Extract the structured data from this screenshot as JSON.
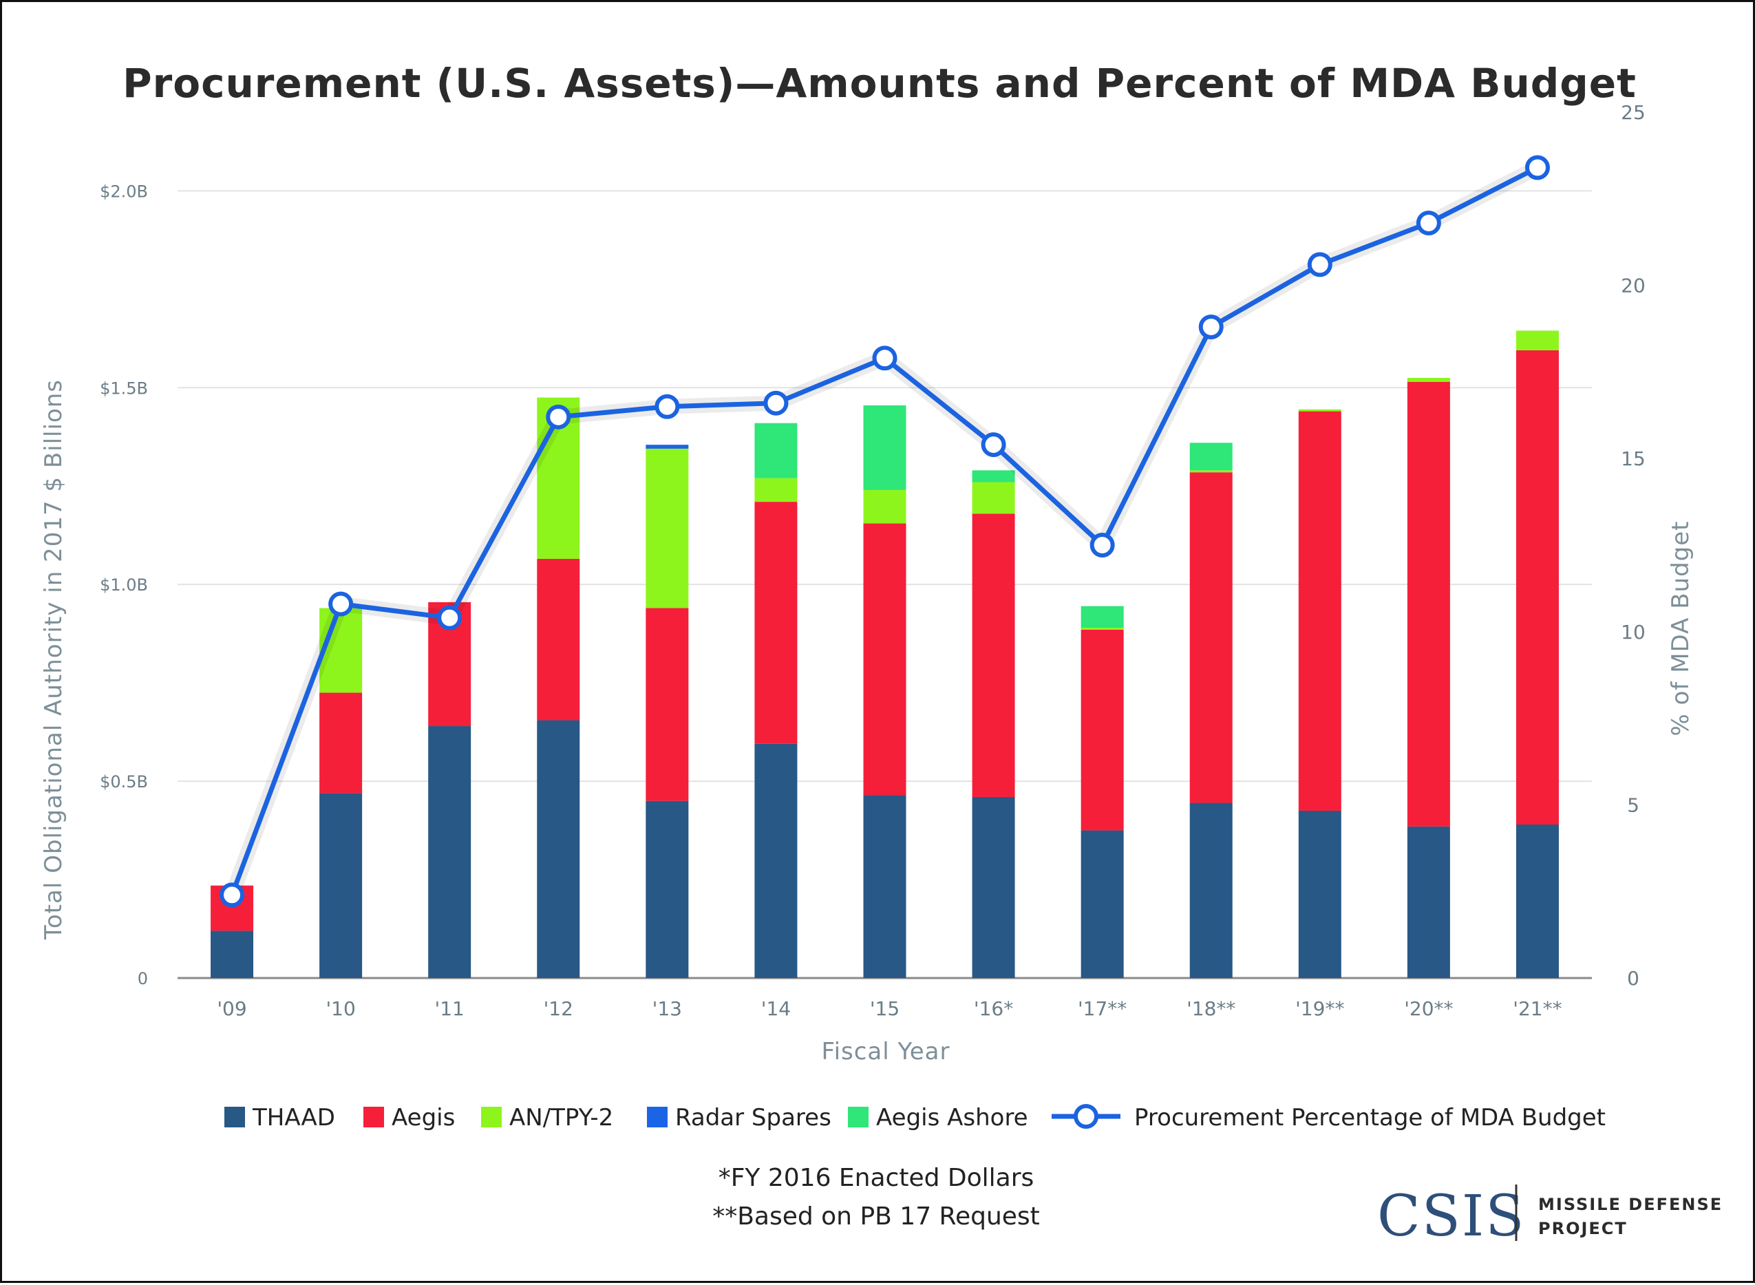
{
  "chart_data": {
    "type": "bar",
    "title": "Procurement (U.S. Assets)—Amounts and Percent of MDA Budget",
    "xlabel": "Fiscal Year",
    "ylabel": "Total Obligational Authority in 2017 $ Billions",
    "y2label": "% of MDA Budget",
    "ylim": [
      0,
      2.0
    ],
    "y2lim": [
      0,
      25
    ],
    "y_ticks": [
      "0",
      "$0.5B",
      "$1.0B",
      "$1.5B",
      "$2.0B"
    ],
    "y2_ticks": [
      "0",
      "5",
      "10",
      "15",
      "20",
      "25"
    ],
    "categories": [
      "'09",
      "'10",
      "'11",
      "'12",
      "'13",
      "'14",
      "'15",
      "'16*",
      "'17**",
      "'18**",
      "'19**",
      "'20**",
      "'21**"
    ],
    "stacked": true,
    "grid": true,
    "legend_position": "bottom",
    "series": [
      {
        "name": "THAAD",
        "color": "#275886",
        "values": [
          0.12,
          0.47,
          0.64,
          0.655,
          0.45,
          0.595,
          0.465,
          0.46,
          0.375,
          0.445,
          0.425,
          0.385,
          0.39
        ]
      },
      {
        "name": "Aegis",
        "color": "#f51f3a",
        "values": [
          0.115,
          0.255,
          0.315,
          0.41,
          0.49,
          0.615,
          0.69,
          0.72,
          0.51,
          0.84,
          1.015,
          1.13,
          1.205
        ]
      },
      {
        "name": "AN/TPY-2",
        "color": "#8ef51c",
        "values": [
          0,
          0.215,
          0,
          0.41,
          0.405,
          0.06,
          0.085,
          0.08,
          0.005,
          0.005,
          0.005,
          0.01,
          0.05
        ]
      },
      {
        "name": "Radar Spares",
        "color": "#1c64e6",
        "values": [
          0,
          0,
          0,
          0,
          0.01,
          0,
          0,
          0,
          0,
          0,
          0,
          0,
          0
        ]
      },
      {
        "name": "Aegis Ashore",
        "color": "#2fe678",
        "values": [
          0,
          0,
          0,
          0,
          0,
          0.14,
          0.215,
          0.03,
          0.055,
          0.07,
          0,
          0,
          0
        ]
      }
    ],
    "line_series": {
      "name": "Procurement Percentage of MDA Budget",
      "color": "#1b63e0",
      "axis": "right",
      "values": [
        2.4,
        10.8,
        10.4,
        16.2,
        16.5,
        16.6,
        17.9,
        15.4,
        12.5,
        18.8,
        20.6,
        21.8,
        23.4
      ]
    }
  },
  "footnotes": [
    "*FY 2016 Enacted Dollars",
    "**Based on PB 17 Request"
  ],
  "logo": {
    "main": "CSIS",
    "line1": "MISSILE DEFENSE",
    "line2": "PROJECT"
  }
}
